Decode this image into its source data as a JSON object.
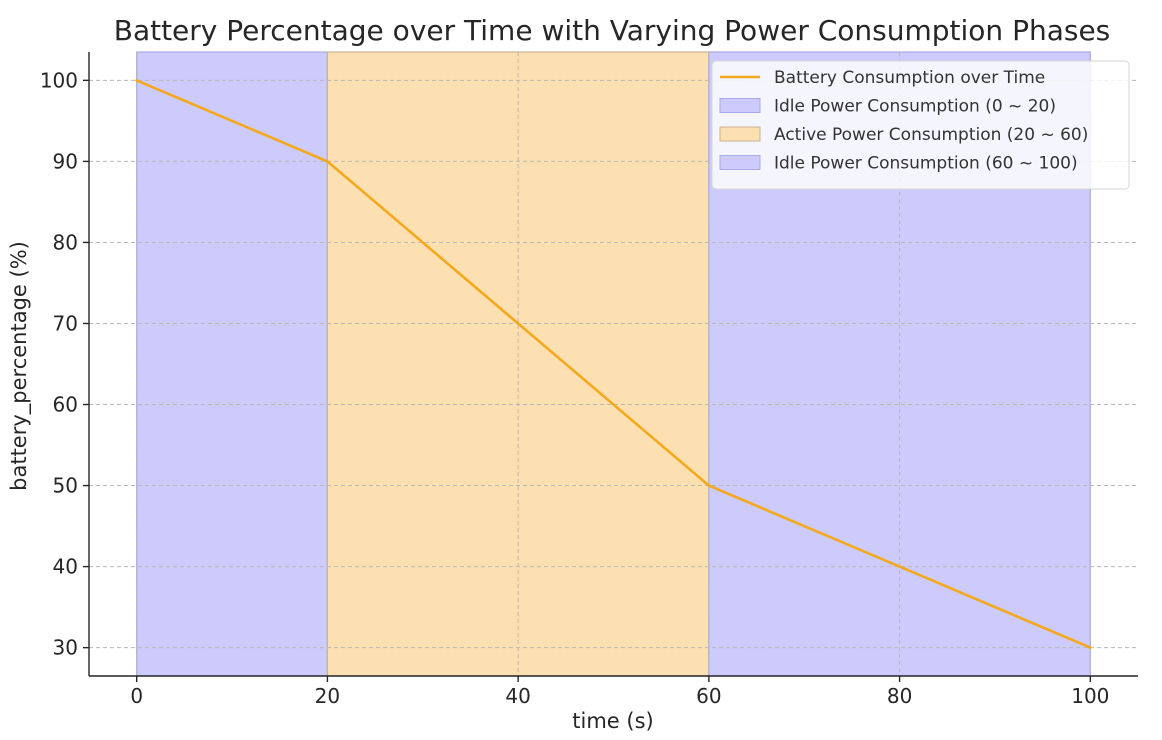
{
  "chart_data": {
    "type": "line",
    "title": "Battery Percentage over Time with Varying Power Consumption Phases",
    "xlabel": "time (s)",
    "ylabel": "battery_percentage (%)",
    "xlim": [
      -5,
      105
    ],
    "ylim": [
      26.5,
      103.5
    ],
    "xticks": [
      0,
      20,
      40,
      60,
      80,
      100
    ],
    "yticks": [
      30,
      40,
      50,
      60,
      70,
      80,
      90,
      100
    ],
    "grid": true,
    "legend_position": "top-right",
    "series": [
      {
        "name": "Battery Consumption over Time",
        "color": "#f5a81c",
        "x": [
          0,
          20,
          40,
          60,
          80,
          100
        ],
        "y": [
          100,
          90,
          70,
          50,
          40,
          30
        ]
      }
    ],
    "spans": [
      {
        "label": "Idle Power Consumption (0 ~ 20)",
        "x0": 0,
        "x1": 20,
        "color": "#cccbfb",
        "edge": "#a9a9e6"
      },
      {
        "label": "Active Power Consumption (20 ~ 60)",
        "x0": 20,
        "x1": 60,
        "color": "#fce0b2",
        "edge": "#c9b48f"
      },
      {
        "label": "Idle Power Consumption (60 ~ 100)",
        "x0": 60,
        "x1": 100,
        "color": "#cccbfb",
        "edge": "#a9a9e6"
      }
    ]
  }
}
